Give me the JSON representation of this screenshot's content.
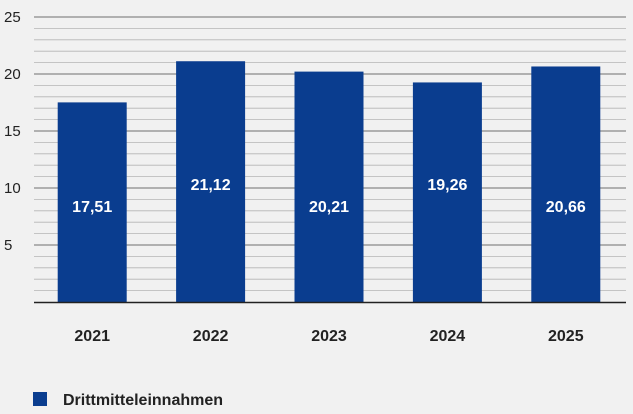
{
  "chart_data": {
    "type": "bar",
    "title": "",
    "xlabel": "",
    "ylabel": "",
    "categories": [
      "2021",
      "2022",
      "2023",
      "2024",
      "2025"
    ],
    "series": [
      {
        "name": "Drittmitteleinnahmen",
        "values": [
          17.51,
          21.12,
          20.21,
          19.26,
          20.66
        ],
        "labels": [
          "17,51",
          "21,12",
          "20,21",
          "19,26",
          "20,66"
        ],
        "color": "#0a3d8f"
      }
    ],
    "ylim": [
      0,
      25
    ],
    "yticks": [
      "5",
      "10",
      "15",
      "20",
      "25"
    ],
    "minor_grid_step": 1,
    "grid": true,
    "legend_position": "bottom-left"
  },
  "colors": {
    "background": "#f1f1f1",
    "bar": "#0a3d8f",
    "grid_major": "#8a8a8a",
    "grid_minor": "#b5b5b5",
    "axis": "#222222"
  }
}
